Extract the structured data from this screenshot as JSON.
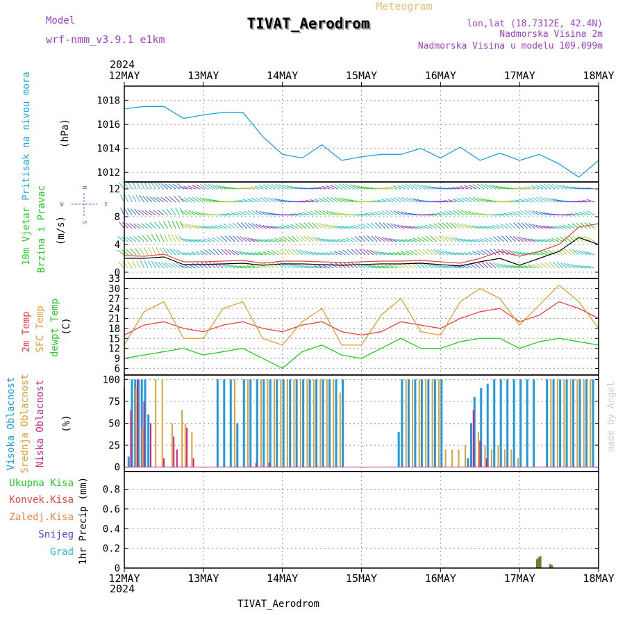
{
  "header": {
    "model_label": "Model",
    "model_value": "wrf-nmm_v3.9.1 e1km",
    "title": "TIVAT_Aerodrom",
    "subtitle": "Meteogram",
    "lonlat": "lon,lat (18.7312E, 42.4N)",
    "elevation": "Nadmorska Visina 2m",
    "model_elevation": "Nadmorska Visina u modelu 109.099m",
    "footer": "TIVAT_Aerodrom",
    "credit": "made by Angel",
    "year": "2024"
  },
  "colors": {
    "pressure": "#1ba1e2",
    "wind_label": "#22cc22",
    "t2m": "#e84040",
    "sfc": "#e0a030",
    "dewpt": "#22cc22",
    "high_cloud": "#1e9be0",
    "mid_cloud": "#e0a030",
    "low_cloud": "#cc2288",
    "purple": "#a040d0"
  },
  "x_axis": {
    "ticks": [
      "12MAY",
      "13MAY",
      "14MAY",
      "15MAY",
      "16MAY",
      "17MAY",
      "18MAY"
    ]
  },
  "wind_compass": {
    "n": "N",
    "w": "W",
    "e": "E",
    "s": "S"
  },
  "panel_labels": {
    "pressure": "Pritisak na nivou mora",
    "pressure_unit": "(hPa)",
    "wind_line1": "10m Vjetar",
    "wind_line2": "Brzina i Pravac",
    "wind_unit": "(m/s)",
    "temp_2m": "2m Temp",
    "temp_sfc": "SFC Temp",
    "temp_dew": "dewpt Temp",
    "temp_unit": "(C)",
    "cloud_high": "Visoka Oblacnost",
    "cloud_mid": "Srednja Oblacnost",
    "cloud_low": "Niska Oblacnost",
    "cloud_unit": "(%)",
    "precip_total": "Ukupna Kisa",
    "precip_conv": "Konvek.Kisa",
    "precip_frz": "Zaledj.Kisa",
    "precip_snow": "Snijeg",
    "precip_grad": "Grad",
    "precip_unit": "1hr Precip (mm)"
  },
  "chart_data": [
    {
      "type": "line",
      "title": "Pritisak na nivou mora",
      "ylabel": "(hPa)",
      "ylim": [
        1011.2,
        1019.2
      ],
      "yticks": [
        "1012",
        "1014",
        "1016",
        "1018"
      ],
      "grid": true,
      "x": [
        0,
        6,
        12,
        18,
        24,
        30,
        36,
        42,
        48,
        54,
        60,
        66,
        72,
        78,
        84,
        90,
        96,
        102,
        108,
        114,
        120,
        126,
        132,
        138,
        144
      ],
      "series": [
        {
          "values": [
            1017.3,
            1017.5,
            1017.5,
            1016.5,
            1016.8,
            1017.0,
            1017.0,
            1015.0,
            1013.5,
            1013.2,
            1014.3,
            1013.0,
            1013.3,
            1013.5,
            1013.5,
            1014.0,
            1013.2,
            1014.1,
            1013.0,
            1013.6,
            1013.0,
            1013.5,
            1012.7,
            1011.6,
            1013.0
          ]
        }
      ]
    },
    {
      "type": "line",
      "title": "10m Vjetar",
      "ylabel": "(m/s)",
      "ylim": [
        -0.9,
        13.0
      ],
      "yticks": [
        "0",
        "4",
        "8",
        "12"
      ],
      "grid": true,
      "x": [
        0,
        6,
        12,
        18,
        24,
        30,
        36,
        42,
        48,
        54,
        60,
        66,
        72,
        78,
        84,
        90,
        96,
        102,
        108,
        114,
        120,
        126,
        132,
        138,
        144
      ],
      "series": [
        {
          "values": [
            2.4,
            2.3,
            2.6,
            1.5,
            1.5,
            1.6,
            1.7,
            1.3,
            1.6,
            1.6,
            1.5,
            1.4,
            1.5,
            1.6,
            1.6,
            1.7,
            1.5,
            1.3,
            2.0,
            3.0,
            2.3,
            3.0,
            4.0,
            6.5,
            7.0
          ]
        },
        {
          "values": [
            2.0,
            2.0,
            2.2,
            1.1,
            1.1,
            1.2,
            1.3,
            1.0,
            1.2,
            1.2,
            1.1,
            1.0,
            1.1,
            1.2,
            1.2,
            1.3,
            1.1,
            0.9,
            1.5,
            2.0,
            1.0,
            2.0,
            3.0,
            5.0,
            4.0
          ]
        }
      ]
    },
    {
      "type": "line",
      "title": "2m Temp / SFC Temp / dewpt Temp",
      "ylabel": "(C)",
      "ylim": [
        4,
        33
      ],
      "yticks": [
        "6",
        "9",
        "12",
        "15",
        "18",
        "21",
        "24",
        "27",
        "30",
        "33"
      ],
      "grid": true,
      "x": [
        0,
        6,
        12,
        18,
        24,
        30,
        36,
        42,
        48,
        54,
        60,
        66,
        72,
        78,
        84,
        90,
        96,
        102,
        108,
        114,
        120,
        126,
        132,
        138,
        144
      ],
      "series": [
        {
          "name": "2m Temp",
          "values": [
            16,
            19,
            20,
            18,
            17,
            19,
            20,
            18,
            17,
            19,
            20,
            17,
            16,
            17,
            20,
            19,
            18,
            21,
            23,
            24,
            20,
            22,
            26,
            24,
            21
          ]
        },
        {
          "name": "SFC Temp",
          "values": [
            13,
            23,
            26,
            15,
            15,
            24,
            26,
            15,
            13,
            20,
            24,
            13,
            13,
            22,
            27,
            17,
            16,
            26,
            30,
            27,
            19,
            25,
            31,
            26,
            18
          ]
        },
        {
          "name": "dewpt Temp",
          "values": [
            9,
            10,
            11,
            12,
            10,
            11,
            12,
            9,
            6,
            11,
            13,
            10,
            9,
            12,
            15,
            12,
            12,
            14,
            15,
            15,
            12,
            14,
            15,
            14,
            13
          ]
        }
      ]
    },
    {
      "type": "bar",
      "title": "Oblacnost",
      "ylabel": "(%)",
      "ylim": [
        -5,
        105
      ],
      "yticks": [
        "0",
        "25",
        "50",
        "75",
        "100"
      ],
      "grid": true,
      "series": [
        {
          "name": "Visoka Oblacnost",
          "values": [
            [
              1,
              12
            ],
            [
              2,
              100
            ],
            [
              3,
              100
            ],
            [
              4,
              100
            ],
            [
              5,
              100
            ],
            [
              6,
              100
            ],
            [
              7,
              60
            ],
            [
              28,
              100
            ],
            [
              30,
              100
            ],
            [
              32,
              100
            ],
            [
              34,
              50
            ],
            [
              36,
              100
            ],
            [
              38,
              100
            ],
            [
              40,
              100
            ],
            [
              42,
              100
            ],
            [
              44,
              100
            ],
            [
              46,
              100
            ],
            [
              48,
              100
            ],
            [
              50,
              100
            ],
            [
              52,
              100
            ],
            [
              54,
              100
            ],
            [
              56,
              100
            ],
            [
              58,
              100
            ],
            [
              60,
              100
            ],
            [
              62,
              100
            ],
            [
              64,
              100
            ],
            [
              66,
              100
            ],
            [
              83,
              40
            ],
            [
              84,
              100
            ],
            [
              86,
              100
            ],
            [
              88,
              100
            ],
            [
              90,
              100
            ],
            [
              92,
              100
            ],
            [
              94,
              100
            ],
            [
              96,
              100
            ],
            [
              104,
              10
            ],
            [
              105,
              50
            ],
            [
              106,
              80
            ],
            [
              108,
              90
            ],
            [
              110,
              95
            ],
            [
              112,
              100
            ],
            [
              114,
              100
            ],
            [
              116,
              100
            ],
            [
              118,
              100
            ],
            [
              120,
              100
            ],
            [
              122,
              100
            ],
            [
              124,
              100
            ],
            [
              128,
              100
            ],
            [
              130,
              100
            ],
            [
              132,
              100
            ],
            [
              134,
              100
            ],
            [
              136,
              100
            ],
            [
              138,
              100
            ],
            [
              140,
              100
            ],
            [
              142,
              100
            ]
          ]
        },
        {
          "name": "Srednja Oblacnost",
          "values": [
            [
              3,
              90
            ],
            [
              5,
              45
            ],
            [
              9,
              100
            ],
            [
              11,
              100
            ],
            [
              14,
              50
            ],
            [
              17,
              65
            ],
            [
              18,
              50
            ],
            [
              20,
              40
            ],
            [
              33,
              100
            ],
            [
              37,
              100
            ],
            [
              41,
              100
            ],
            [
              43,
              100
            ],
            [
              45,
              100
            ],
            [
              47,
              100
            ],
            [
              49,
              100
            ],
            [
              51,
              100
            ],
            [
              53,
              100
            ],
            [
              55,
              100
            ],
            [
              57,
              100
            ],
            [
              59,
              100
            ],
            [
              61,
              100
            ],
            [
              63,
              100
            ],
            [
              65,
              85
            ],
            [
              85,
              100
            ],
            [
              87,
              100
            ],
            [
              89,
              100
            ],
            [
              91,
              100
            ],
            [
              93,
              100
            ],
            [
              95,
              100
            ],
            [
              97,
              20
            ],
            [
              99,
              20
            ],
            [
              101,
              20
            ],
            [
              103,
              25
            ],
            [
              107,
              40
            ],
            [
              109,
              25
            ],
            [
              111,
              20
            ],
            [
              113,
              25
            ],
            [
              115,
              20
            ],
            [
              117,
              20
            ],
            [
              119,
              10
            ],
            [
              129,
              100
            ],
            [
              131,
              100
            ],
            [
              133,
              100
            ],
            [
              135,
              100
            ],
            [
              137,
              100
            ],
            [
              139,
              100
            ],
            [
              141,
              100
            ]
          ]
        },
        {
          "name": "Niska Oblacnost",
          "values": [
            [
              0,
              90
            ],
            [
              2,
              65
            ],
            [
              4,
              100
            ],
            [
              6,
              75
            ],
            [
              8,
              50
            ],
            [
              12,
              10
            ],
            [
              15,
              35
            ],
            [
              16,
              20
            ],
            [
              19,
              45
            ],
            [
              21,
              10
            ],
            [
              40,
              5
            ],
            [
              44,
              5
            ],
            [
              106,
              65
            ],
            [
              108,
              30
            ],
            [
              110,
              10
            ]
          ]
        }
      ]
    },
    {
      "type": "bar",
      "title": "1hr Precip",
      "ylabel": "1hr Precip (mm)",
      "ylim": [
        0,
        0.98
      ],
      "yticks": [
        "0",
        "0.2",
        "0.4",
        "0.6",
        "0.8"
      ],
      "grid": true,
      "series": [
        {
          "name": "Ukupna Kisa",
          "values": [
            [
              125,
              0.09
            ],
            [
              126,
              0.12
            ],
            [
              129,
              0.04
            ]
          ]
        },
        {
          "name": "Konvek.Kisa",
          "values": [
            [
              125.5,
              0.11
            ],
            [
              129.5,
              0.03
            ]
          ]
        }
      ]
    }
  ]
}
